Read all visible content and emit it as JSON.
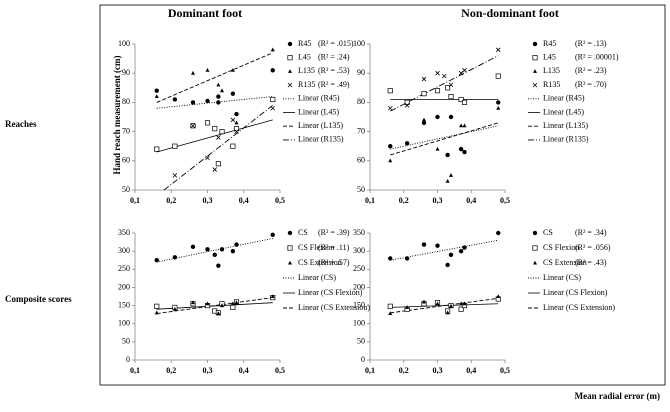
{
  "ylabel": "Hand reach measurement (cm)",
  "xlabel": "Mean radial error (m)",
  "row_labels": [
    "Reaches",
    "Composite scores"
  ],
  "chart_data": [
    {
      "type": "scatter",
      "title": "Dominant foot",
      "xlim": [
        0.1,
        0.5
      ],
      "xticks": [
        {
          "value": 0.1,
          "label": "0,1"
        },
        {
          "value": 0.2,
          "label": "0,2"
        },
        {
          "value": 0.3,
          "label": "0,3"
        },
        {
          "value": 0.4,
          "label": "0,4"
        },
        {
          "value": 0.5,
          "label": "0,5"
        }
      ],
      "ylim": [
        50,
        100
      ],
      "yticks": [
        50,
        60,
        70,
        80,
        90,
        100
      ],
      "series": [
        {
          "name": "R45",
          "marker": "circle",
          "r2": "(R² = .015)",
          "x": [
            0.16,
            0.21,
            0.26,
            0.3,
            0.33,
            0.33,
            0.37,
            0.38,
            0.48
          ],
          "values": [
            84,
            81,
            80,
            80.5,
            80,
            82,
            83,
            76,
            91
          ]
        },
        {
          "name": "L45",
          "marker": "square",
          "r2": "(R² = .24)",
          "x": [
            0.16,
            0.21,
            0.26,
            0.3,
            0.32,
            0.33,
            0.34,
            0.37,
            0.38,
            0.48
          ],
          "values": [
            64,
            65,
            72,
            73,
            71,
            59,
            70,
            65,
            71,
            81
          ]
        },
        {
          "name": "L135",
          "marker": "triangle",
          "r2": "(R² = .53)",
          "x": [
            0.16,
            0.26,
            0.3,
            0.33,
            0.34,
            0.37,
            0.38,
            0.48
          ],
          "values": [
            82,
            90,
            91,
            86,
            84,
            91,
            73,
            98
          ]
        },
        {
          "name": "R135",
          "marker": "x",
          "r2": "(R² = .49)",
          "x": [
            0.21,
            0.26,
            0.3,
            0.32,
            0.33,
            0.37,
            0.38,
            0.48
          ],
          "values": [
            55,
            72,
            61,
            57,
            68,
            74,
            70,
            78
          ]
        }
      ],
      "trends": [
        {
          "name": "Linear (R45)",
          "line_style": "dotted",
          "x": [
            0.16,
            0.48
          ],
          "values": [
            78,
            82
          ]
        },
        {
          "name": "Linear (L45)",
          "line_style": "solid",
          "x": [
            0.16,
            0.48
          ],
          "values": [
            63,
            74
          ]
        },
        {
          "name": "Linear (L135)",
          "line_style": "dashed",
          "x": [
            0.16,
            0.48
          ],
          "values": [
            80,
            97
          ]
        },
        {
          "name": "Linear (R135)",
          "line_style": "dashdot",
          "x": [
            0.18,
            0.48
          ],
          "values": [
            50,
            79
          ]
        }
      ]
    },
    {
      "type": "scatter",
      "title": "Non-dominant foot",
      "xlim": [
        0.1,
        0.5
      ],
      "xticks": [
        {
          "value": 0.1,
          "label": "0,1"
        },
        {
          "value": 0.2,
          "label": "0,2"
        },
        {
          "value": 0.3,
          "label": "0,3"
        },
        {
          "value": 0.4,
          "label": "0,4"
        },
        {
          "value": 0.5,
          "label": "0,5"
        }
      ],
      "ylim": [
        50,
        100
      ],
      "yticks": [
        50,
        60,
        70,
        80,
        90,
        100
      ],
      "series": [
        {
          "name": "R45",
          "marker": "circle",
          "r2": "(R² = .13)",
          "x": [
            0.16,
            0.21,
            0.26,
            0.3,
            0.33,
            0.34,
            0.37,
            0.38,
            0.48
          ],
          "values": [
            65,
            66,
            73,
            75,
            62,
            75,
            64,
            63,
            80
          ]
        },
        {
          "name": "L45",
          "marker": "square",
          "r2": "(R² = .00001)",
          "x": [
            0.16,
            0.21,
            0.26,
            0.3,
            0.33,
            0.34,
            0.37,
            0.38,
            0.48
          ],
          "values": [
            84,
            80,
            83,
            84,
            85,
            82,
            81,
            80,
            89
          ]
        },
        {
          "name": "L135",
          "marker": "triangle",
          "r2": "(R² = .23)",
          "x": [
            0.16,
            0.26,
            0.3,
            0.33,
            0.34,
            0.37,
            0.38,
            0.48
          ],
          "values": [
            60,
            74,
            64,
            53,
            55,
            72,
            72,
            78
          ]
        },
        {
          "name": "R135",
          "marker": "x",
          "r2": "(R² = .70)",
          "x": [
            0.16,
            0.21,
            0.26,
            0.3,
            0.32,
            0.34,
            0.37,
            0.38,
            0.48
          ],
          "values": [
            78,
            79,
            88,
            90,
            89,
            86,
            90,
            91,
            98
          ]
        }
      ],
      "trends": [
        {
          "name": "Linear (R45)",
          "line_style": "dotted",
          "x": [
            0.16,
            0.48
          ],
          "values": [
            64,
            72
          ]
        },
        {
          "name": "Linear (L45)",
          "line_style": "solid",
          "x": [
            0.16,
            0.48
          ],
          "values": [
            81,
            81
          ]
        },
        {
          "name": "Linear (L135)",
          "line_style": "dashed",
          "x": [
            0.16,
            0.48
          ],
          "values": [
            62,
            73
          ]
        },
        {
          "name": "Linear (R135)",
          "line_style": "dashdot",
          "x": [
            0.16,
            0.48
          ],
          "values": [
            77,
            96
          ]
        }
      ]
    },
    {
      "type": "scatter",
      "xlim": [
        0.1,
        0.5
      ],
      "xticks": [
        {
          "value": 0.1,
          "label": "0,1"
        },
        {
          "value": 0.2,
          "label": "0,2"
        },
        {
          "value": 0.3,
          "label": "0,3"
        },
        {
          "value": 0.4,
          "label": "0,4"
        },
        {
          "value": 0.5,
          "label": "0,5"
        }
      ],
      "ylim": [
        0,
        350
      ],
      "yticks": [
        0,
        50,
        100,
        150,
        200,
        250,
        300,
        350
      ],
      "series": [
        {
          "name": "CS",
          "marker": "circle",
          "r2": "(R² = .39)",
          "x": [
            0.16,
            0.21,
            0.26,
            0.3,
            0.32,
            0.33,
            0.34,
            0.37,
            0.38,
            0.48
          ],
          "values": [
            275,
            283,
            312,
            305,
            290,
            260,
            305,
            300,
            318,
            345
          ]
        },
        {
          "name": "CS Flexion",
          "marker": "square",
          "r2": "(R² = .11)",
          "x": [
            0.16,
            0.21,
            0.26,
            0.3,
            0.32,
            0.33,
            0.34,
            0.37,
            0.38,
            0.48
          ],
          "values": [
            148,
            145,
            155,
            150,
            135,
            130,
            155,
            145,
            160,
            172
          ]
        },
        {
          "name": "CS Extension",
          "marker": "triangle",
          "r2": "(R² = .57)",
          "x": [
            0.16,
            0.21,
            0.26,
            0.3,
            0.33,
            0.34,
            0.37,
            0.38,
            0.48
          ],
          "values": [
            130,
            140,
            158,
            155,
            128,
            150,
            155,
            158,
            175
          ]
        }
      ],
      "trends": [
        {
          "name": "Linear (CS)",
          "line_style": "dotted",
          "x": [
            0.16,
            0.48
          ],
          "values": [
            270,
            335
          ]
        },
        {
          "name": "Linear (CS Flexion)",
          "line_style": "solid",
          "x": [
            0.16,
            0.48
          ],
          "values": [
            140,
            158
          ]
        },
        {
          "name": "Linear (CS Extension)",
          "line_style": "dashed",
          "x": [
            0.16,
            0.48
          ],
          "values": [
            128,
            172
          ]
        }
      ]
    },
    {
      "type": "scatter",
      "xlim": [
        0.1,
        0.5
      ],
      "xticks": [
        {
          "value": 0.1,
          "label": "0,1"
        },
        {
          "value": 0.2,
          "label": "0,2"
        },
        {
          "value": 0.3,
          "label": "0,3"
        },
        {
          "value": 0.4,
          "label": "0,4"
        },
        {
          "value": 0.5,
          "label": "0,5"
        }
      ],
      "ylim": [
        0,
        350
      ],
      "yticks": [
        0,
        50,
        100,
        150,
        200,
        250,
        300,
        350
      ],
      "series": [
        {
          "name": "CS",
          "marker": "circle",
          "r2": "(R² = .34)",
          "x": [
            0.16,
            0.21,
            0.26,
            0.3,
            0.33,
            0.34,
            0.37,
            0.38,
            0.48
          ],
          "values": [
            280,
            280,
            318,
            315,
            262,
            290,
            300,
            310,
            350
          ]
        },
        {
          "name": "CS Flexion",
          "marker": "square",
          "r2": "(R² = .056)",
          "x": [
            0.16,
            0.21,
            0.26,
            0.3,
            0.33,
            0.34,
            0.37,
            0.38,
            0.48
          ],
          "values": [
            148,
            140,
            155,
            158,
            135,
            150,
            140,
            150,
            168
          ]
        },
        {
          "name": "CS Extension",
          "marker": "triangle",
          "r2": "(R² = .43)",
          "x": [
            0.16,
            0.21,
            0.26,
            0.3,
            0.33,
            0.34,
            0.37,
            0.38,
            0.48
          ],
          "values": [
            128,
            145,
            160,
            155,
            130,
            148,
            155,
            155,
            175
          ]
        }
      ],
      "trends": [
        {
          "name": "Linear (CS)",
          "line_style": "dotted",
          "x": [
            0.16,
            0.48
          ],
          "values": [
            275,
            330
          ]
        },
        {
          "name": "Linear (CS Flexion)",
          "line_style": "solid",
          "x": [
            0.16,
            0.48
          ],
          "values": [
            145,
            155
          ]
        },
        {
          "name": "Linear (CS Extension)",
          "line_style": "dashed",
          "x": [
            0.16,
            0.48
          ],
          "values": [
            130,
            170
          ]
        }
      ]
    }
  ]
}
